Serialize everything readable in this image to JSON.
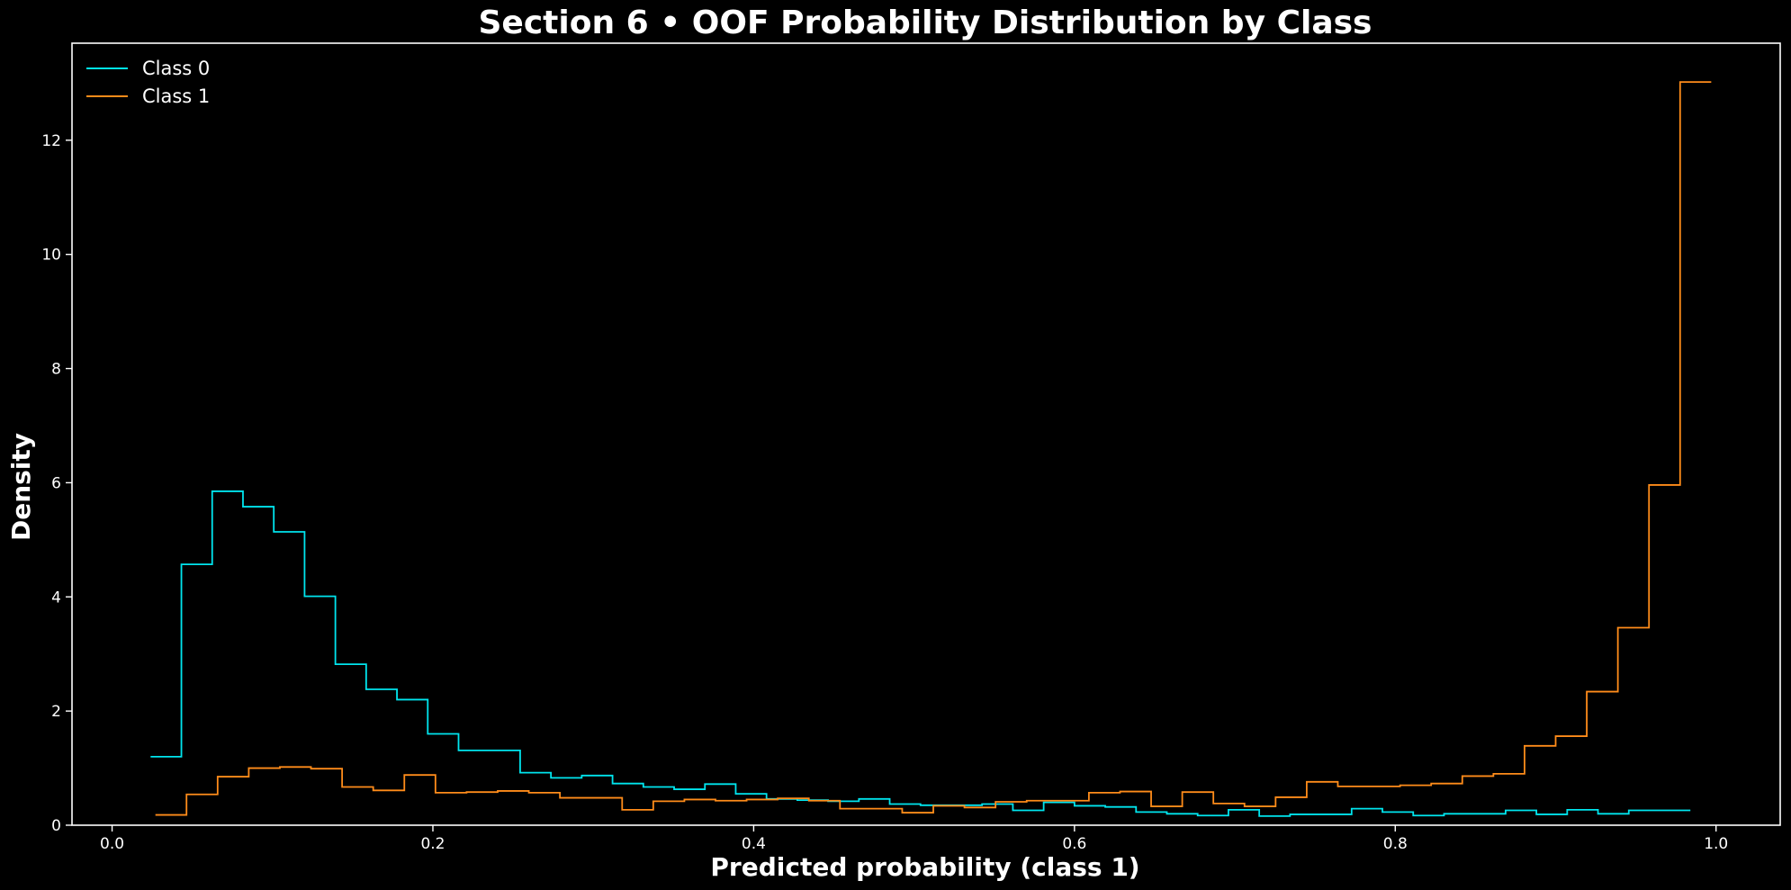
{
  "chart_data": {
    "type": "line",
    "title": "Section 6 • OOF Probability Distribution by Class",
    "xlabel": "Predicted probability (class 1)",
    "ylabel": "Density",
    "xlim": [
      -0.025,
      1.04
    ],
    "ylim": [
      0,
      13.7
    ],
    "xticks": [
      "0.0",
      "0.2",
      "0.4",
      "0.6",
      "0.8",
      "1.0"
    ],
    "yticks": [
      "0",
      "2",
      "4",
      "6",
      "8",
      "10",
      "12"
    ],
    "legend_position": "top-left",
    "grid": false,
    "series": [
      {
        "name": "Class 0",
        "color": "#00e5ee",
        "bin_edges": [
          0.024,
          0.0432,
          0.0624,
          0.0816,
          0.1008,
          0.12,
          0.1392,
          0.1584,
          0.1776,
          0.1968,
          0.216,
          0.2352,
          0.2544,
          0.2736,
          0.2928,
          0.312,
          0.3312,
          0.3504,
          0.3696,
          0.3888,
          0.408,
          0.4272,
          0.4464,
          0.4656,
          0.4848,
          0.504,
          0.5232,
          0.5424,
          0.5616,
          0.5808,
          0.6,
          0.6192,
          0.6384,
          0.6576,
          0.6768,
          0.696,
          0.7152,
          0.7344,
          0.7536,
          0.7728,
          0.792,
          0.8112,
          0.8304,
          0.8496,
          0.8688,
          0.888,
          0.9072,
          0.9264,
          0.9456,
          0.9648,
          0.984
        ],
        "values": [
          1.2,
          4.57,
          5.85,
          5.58,
          5.14,
          4.01,
          2.82,
          2.38,
          2.2,
          1.6,
          1.31,
          1.31,
          0.92,
          0.83,
          0.87,
          0.73,
          0.67,
          0.63,
          0.72,
          0.55,
          0.46,
          0.44,
          0.42,
          0.46,
          0.37,
          0.35,
          0.35,
          0.37,
          0.26,
          0.4,
          0.34,
          0.32,
          0.23,
          0.2,
          0.17,
          0.27,
          0.16,
          0.19,
          0.19,
          0.29,
          0.23,
          0.17,
          0.2,
          0.2,
          0.26,
          0.19,
          0.27,
          0.2,
          0.26,
          0.26
        ]
      },
      {
        "name": "Class 1",
        "color": "#ff8c1a",
        "bin_edges": [
          0.027,
          0.0464,
          0.0658,
          0.0852,
          0.1046,
          0.124,
          0.1434,
          0.1628,
          0.1822,
          0.2016,
          0.221,
          0.2404,
          0.2598,
          0.2792,
          0.2986,
          0.318,
          0.3374,
          0.3568,
          0.3762,
          0.3956,
          0.415,
          0.4344,
          0.4538,
          0.4732,
          0.4926,
          0.512,
          0.5314,
          0.5508,
          0.5702,
          0.5896,
          0.609,
          0.6284,
          0.6478,
          0.6672,
          0.6866,
          0.706,
          0.7254,
          0.7448,
          0.7642,
          0.7836,
          0.803,
          0.8224,
          0.8418,
          0.8612,
          0.8806,
          0.9,
          0.9194,
          0.9388,
          0.9582,
          0.9776,
          0.997
        ],
        "values": [
          0.18,
          0.54,
          0.85,
          1.0,
          1.02,
          0.99,
          0.67,
          0.61,
          0.88,
          0.57,
          0.58,
          0.6,
          0.57,
          0.48,
          0.48,
          0.27,
          0.42,
          0.45,
          0.43,
          0.45,
          0.47,
          0.43,
          0.29,
          0.29,
          0.22,
          0.34,
          0.31,
          0.41,
          0.43,
          0.43,
          0.57,
          0.59,
          0.33,
          0.58,
          0.38,
          0.33,
          0.49,
          0.76,
          0.68,
          0.68,
          0.7,
          0.73,
          0.86,
          0.9,
          1.39,
          1.56,
          2.34,
          3.46,
          5.96,
          13.02
        ]
      }
    ]
  }
}
